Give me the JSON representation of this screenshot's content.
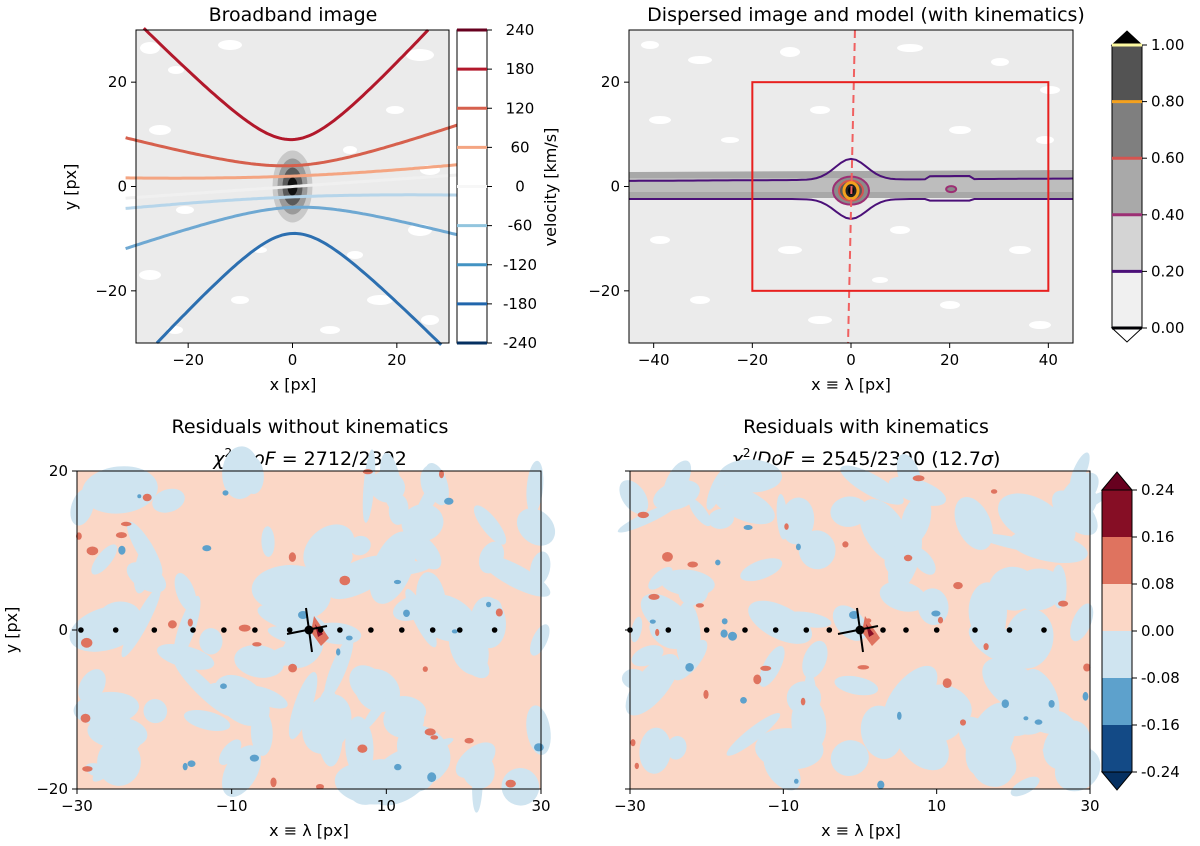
{
  "chart_data": [
    {
      "type": "contour",
      "title": "Broadband image",
      "xlabel": "x [px]",
      "ylabel": "y [px]",
      "xlim": [
        -30,
        30
      ],
      "ylim": [
        -30,
        30
      ],
      "xticks": [
        -20,
        0,
        20
      ],
      "yticks": [
        -20,
        0,
        20
      ],
      "xtick_labels": [
        "−20",
        "0",
        "20"
      ],
      "ytick_labels": [
        "−20",
        "0",
        "20"
      ],
      "colorbar": {
        "label": "velocity [km/s]",
        "tick_labels": [
          "240",
          "180",
          "120",
          "60",
          "0",
          "-60",
          "-120",
          "-180",
          "-240"
        ],
        "values": [
          240,
          180,
          120,
          60,
          0,
          -60,
          -120,
          -180,
          -240
        ],
        "colors": [
          "#67001f",
          "#b2182b",
          "#d6604d",
          "#f4a582",
          "#f7f7f7",
          "#92c5de",
          "#4393c3",
          "#2166ac",
          "#053061"
        ]
      },
      "velocity_levels": [
        {
          "value": 180,
          "color": "#b2182b",
          "vertex_y": 9
        },
        {
          "value": 120,
          "color": "#d6604d",
          "vertex_y": 4
        },
        {
          "value": 60,
          "color": "#f4a582",
          "vertex_y": 2
        },
        {
          "value": 0,
          "color": "#f0f0f0",
          "vertex_y": 0
        },
        {
          "value": -60,
          "color": "#b6d5ea",
          "vertex_y": -2
        },
        {
          "value": -120,
          "color": "#6ea8d2",
          "vertex_y": -4
        },
        {
          "value": -180,
          "color": "#2c6fb0",
          "vertex_y": -9
        }
      ]
    },
    {
      "type": "contour",
      "title": "Dispersed image and model (with kinematics)",
      "xlabel": "x ≡ λ [px]",
      "xlim": [
        -45,
        45
      ],
      "ylim": [
        -30,
        30
      ],
      "xticks": [
        -40,
        -20,
        0,
        20,
        40
      ],
      "yticks": [
        -20,
        0,
        20
      ],
      "xtick_labels": [
        "−40",
        "−20",
        "0",
        "20",
        "40"
      ],
      "ytick_labels": [
        "−20",
        "0",
        "20"
      ],
      "box": {
        "x0": -20,
        "x1": 40,
        "y0": -20,
        "y1": 20,
        "color": "#e8201f"
      },
      "colorbar": {
        "tick_labels": [
          "1.00",
          "0.80",
          "0.60",
          "0.40",
          "0.20",
          "0.00"
        ],
        "values": [
          1.0,
          0.8,
          0.6,
          0.4,
          0.2,
          0.0
        ],
        "line_colors": [
          "#fcf8a0",
          "#f4a11e",
          "#d55450",
          "#9c2f74",
          "#4b1078",
          "#000004"
        ]
      }
    },
    {
      "type": "heatmap",
      "title": "Residuals without kinematics",
      "subtitle_prefix": "χ",
      "subtitle_exp": "2",
      "subtitle_mid": "/",
      "subtitle_dof": "DoF",
      "subtitle_value": " = 2712/2392",
      "xlabel": "x ≡ λ [px]",
      "ylabel": "y [px]",
      "xlim": [
        -30,
        30
      ],
      "ylim": [
        -20,
        20
      ],
      "xticks": [
        -30,
        -10,
        10,
        30
      ],
      "yticks": [
        -20,
        0,
        20
      ],
      "xtick_labels": [
        "−30",
        "−10",
        "10",
        "30"
      ],
      "ytick_labels": [
        "−20",
        "0",
        "20"
      ],
      "trace_dots_x": [
        -29.5,
        -25,
        -20,
        -15,
        -11,
        -7,
        -2.5,
        1.5,
        4,
        8,
        12,
        16,
        19.5,
        24
      ],
      "center": {
        "x": 0,
        "y": 0
      }
    },
    {
      "type": "heatmap",
      "title": "Residuals with kinematics",
      "subtitle_prefix": "χ",
      "subtitle_exp": "2",
      "subtitle_mid": "/",
      "subtitle_dof": "DoF",
      "subtitle_value": " = 2545/2390 (12.7",
      "subtitle_sigma": "σ",
      "subtitle_end": ")",
      "xlabel": "x ≡ λ [px]",
      "xlim": [
        -30,
        30
      ],
      "ylim": [
        -20,
        20
      ],
      "xticks": [
        -30,
        -10,
        10,
        30
      ],
      "yticks": [
        -20,
        0,
        20
      ],
      "xtick_labels": [
        "−30",
        "−10",
        "10",
        "30"
      ],
      "trace_dots_x": [
        -30,
        -25,
        -20,
        -15,
        -11,
        -7,
        -4,
        0,
        3,
        6,
        10,
        15,
        19.5,
        24
      ],
      "center": {
        "x": 0,
        "y": 0
      },
      "colorbar": {
        "tick_labels": [
          "0.24",
          "0.16",
          "0.08",
          "0.00",
          "-0.08",
          "-0.16",
          "-0.24"
        ],
        "values": [
          0.24,
          0.16,
          0.08,
          0.0,
          -0.08,
          -0.16,
          -0.24
        ],
        "colors": [
          "#860e25",
          "#df735f",
          "#fbd7c6",
          "#cfe4f0",
          "#5da1cc",
          "#134a86"
        ]
      }
    }
  ]
}
